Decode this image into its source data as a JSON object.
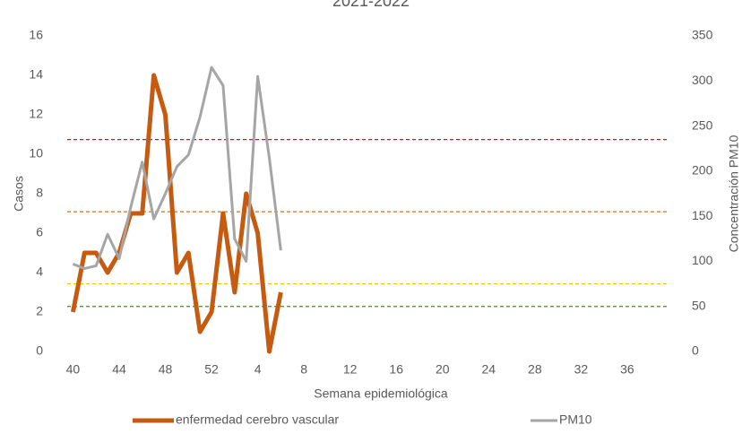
{
  "chart_data": {
    "type": "line",
    "title": "2021-2022",
    "x_label": "Semana epidemiológica",
    "y_label": "Casos",
    "y2_label": "Concentración PM10",
    "categories": [
      40,
      null,
      null,
      null,
      44,
      null,
      null,
      null,
      48,
      null,
      null,
      null,
      52,
      null,
      null,
      null,
      4,
      null,
      null,
      null,
      8,
      null,
      null,
      null,
      12,
      null,
      null,
      null,
      16,
      null,
      null,
      null,
      20,
      null,
      null,
      null,
      24,
      null,
      null,
      null,
      28,
      null,
      null,
      null,
      32,
      null,
      null,
      null,
      36,
      null,
      null,
      null
    ],
    "ylim": [
      0,
      16
    ],
    "yticks": [
      0,
      2,
      4,
      6,
      8,
      10,
      12,
      14,
      16
    ],
    "y2lim": [
      0,
      350
    ],
    "y2ticks": [
      0,
      50,
      100,
      150,
      200,
      250,
      300,
      350
    ],
    "series": [
      {
        "name": "enfermedad cerebro vascular",
        "color": "#c55a11",
        "width": 5,
        "values": [
          2,
          5,
          5,
          4,
          5,
          7,
          7,
          14,
          12,
          4,
          5,
          1,
          2,
          7,
          3,
          8,
          6,
          0,
          3,
          null,
          null,
          null,
          null,
          null,
          null,
          null,
          null,
          null,
          null,
          null,
          null,
          null,
          null,
          null,
          null,
          null,
          null,
          null,
          null,
          null,
          null,
          null,
          null,
          null,
          null,
          null,
          null,
          null,
          null,
          null,
          null,
          null
        ]
      },
      {
        "name": "PM10",
        "color": "#a5a5a5",
        "width": 3,
        "axis": "y2",
        "values": [
          97,
          92,
          95,
          130,
          103,
          160,
          210,
          147,
          175,
          205,
          218,
          260,
          315,
          295,
          125,
          100,
          305,
          215,
          112,
          null,
          null,
          null,
          null,
          null,
          null,
          null,
          null,
          null,
          null,
          null,
          null,
          null,
          null,
          null,
          null,
          null,
          null,
          null,
          null,
          null,
          null,
          null,
          null,
          null,
          null,
          null,
          null,
          null,
          null,
          null,
          null,
          null
        ]
      }
    ],
    "thresholds": [
      {
        "value": 235,
        "color": "#ff0000"
      },
      {
        "value": 155,
        "color": "#e36c09"
      },
      {
        "value": 75,
        "color": "#ffc000"
      },
      {
        "value": 50,
        "color": "#548235"
      }
    ]
  }
}
